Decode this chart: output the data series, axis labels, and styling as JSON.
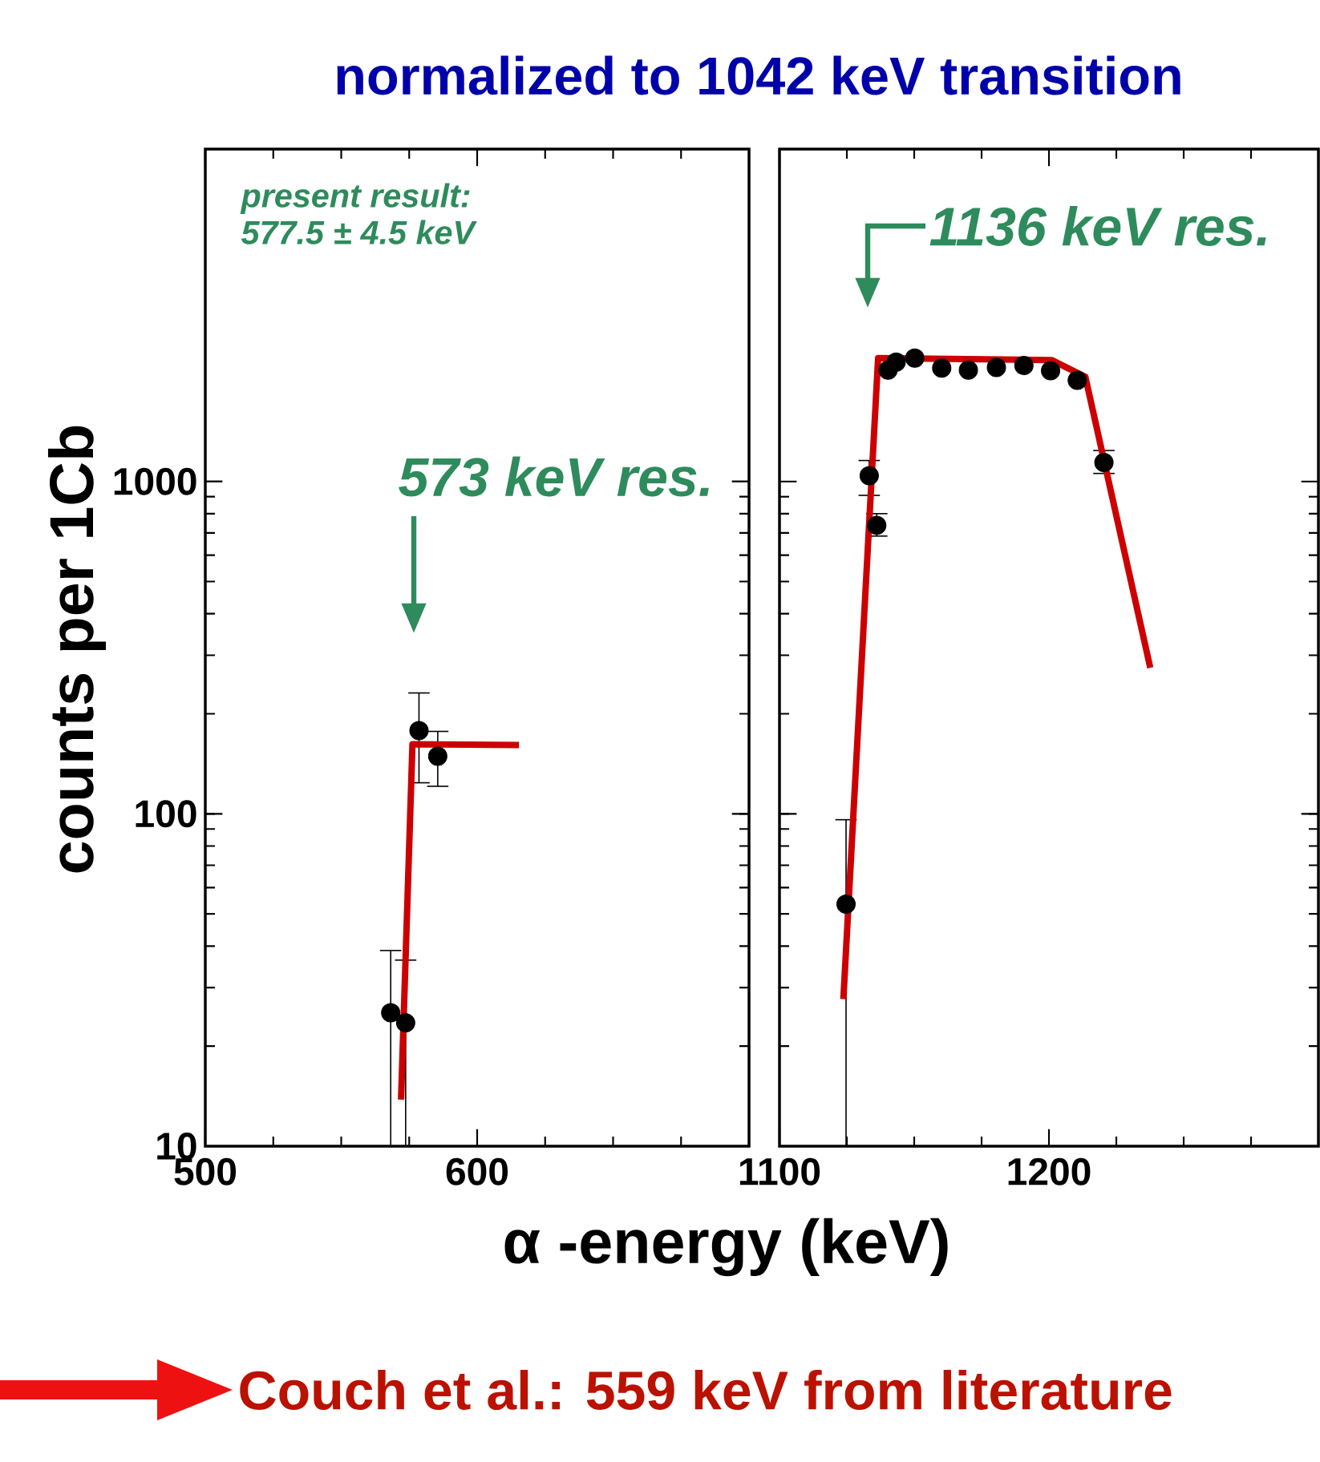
{
  "chart_data": [
    {
      "type": "scatter",
      "title": "normalized to 1042 keV transition",
      "ylabel": "counts per 1Cb",
      "log": "y",
      "marker": "circle",
      "xlim": [
        500,
        700
      ],
      "xticks": [
        500,
        600,
        {
          "value": 700,
          "label": null
        }
      ],
      "ylim": [
        10,
        10000
      ],
      "yticks": [
        10,
        100,
        1000
      ],
      "annotations": [
        "present result:",
        "577.5 ± 4.5 keV",
        "573 keV res."
      ],
      "series": [
        {
          "color": "#000000",
          "x": [
            568.2,
            573.7,
            578.6,
            585.5
          ],
          "values": [
            25.2,
            23.5,
            178,
            149
          ],
          "errors": [
            [
              10,
              38.8
            ],
            [
              10,
              36.3
            ],
            [
              124,
              231
            ],
            [
              121,
              177
            ]
          ]
        },
        {
          "type": "line",
          "marker": "none",
          "color": "#cc0000",
          "x": [
            572,
            576.2,
            615.4
          ],
          "values": [
            13.8,
            162,
            161
          ]
        }
      ]
    },
    {
      "type": "scatter",
      "xlabel": "α -energy (keV)",
      "log": "y",
      "tick_labels": "x",
      "marker": "circle",
      "xlim": [
        1100,
        1300
      ],
      "xticks": [
        1100,
        1200,
        {
          "value": 1300,
          "label": null
        }
      ],
      "ylim": [
        10,
        10000
      ],
      "yticks": [
        10,
        100,
        1000
      ],
      "annotations": [
        "1136 keV res.",
        "Couch et al.: 559 keV from literature"
      ],
      "series": [
        {
          "color": "#000000",
          "x": [
            1124.7,
            1133.3,
            1136.1,
            1140.3,
            1143.3,
            1150.2,
            1160.2,
            1170.1,
            1180.5,
            1190.7,
            1200.6,
            1210.5,
            1220.4
          ],
          "values": [
            53.5,
            1040,
            738,
            2163,
            2286,
            2350,
            2193,
            2163,
            2203,
            2234,
            2153,
            2014,
            1140
          ],
          "errors": [
            [
              10,
              96
            ],
            [
              908,
              1156
            ],
            [
              685,
              800
            ],
            null,
            null,
            null,
            null,
            null,
            null,
            null,
            null,
            null,
            [
              1057,
              1239
            ]
          ]
        },
        {
          "type": "line",
          "marker": "none",
          "color": "#cc0000",
          "x": [
            1123.7,
            1136.6,
            1201.1,
            1213.5,
            1237.6
          ],
          "values": [
            27.7,
            2350,
            2317,
            2065,
            275
          ]
        }
      ]
    }
  ]
}
